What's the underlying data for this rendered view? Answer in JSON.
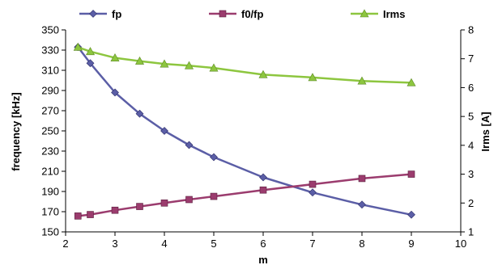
{
  "chart_data": {
    "type": "line",
    "xlabel": "m",
    "ylabel_left": "frequency [kHz]",
    "ylabel_right": "Irms [A]",
    "xlim": [
      2,
      10
    ],
    "xticks": [
      2,
      3,
      4,
      5,
      6,
      7,
      8,
      9,
      10
    ],
    "ylim_left": [
      150,
      350
    ],
    "yticks_left": [
      150,
      170,
      190,
      210,
      230,
      250,
      270,
      290,
      310,
      330,
      350
    ],
    "ylim_right": [
      1,
      8
    ],
    "yticks_right": [
      1,
      2,
      3,
      4,
      5,
      6,
      7,
      8
    ],
    "grid": false,
    "legend_position": "top",
    "series": [
      {
        "name": "fp",
        "axis": "left",
        "color": "#5b5ea6",
        "marker": "diamond",
        "x": [
          2.25,
          2.5,
          3,
          3.5,
          4,
          4.5,
          5,
          6,
          7,
          8,
          9
        ],
        "y": [
          333,
          317,
          288,
          267,
          250,
          236,
          224,
          204,
          189,
          177,
          167
        ]
      },
      {
        "name": "f0/fp",
        "axis": "right",
        "color": "#9b3c6e",
        "marker": "square",
        "x": [
          2.25,
          2.5,
          3,
          3.5,
          4,
          4.5,
          5,
          6,
          7,
          8,
          9
        ],
        "y": [
          1.55,
          1.6,
          1.75,
          1.88,
          2.0,
          2.12,
          2.23,
          2.45,
          2.65,
          2.85,
          3.0
        ]
      },
      {
        "name": "Irms",
        "axis": "right",
        "color": "#8dc63f",
        "marker": "triangle",
        "x": [
          2.25,
          2.5,
          3,
          3.5,
          4,
          4.5,
          5,
          6,
          7,
          8,
          9
        ],
        "y": [
          7.4,
          7.25,
          7.03,
          6.92,
          6.82,
          6.76,
          6.68,
          6.45,
          6.35,
          6.23,
          6.17
        ]
      }
    ]
  }
}
